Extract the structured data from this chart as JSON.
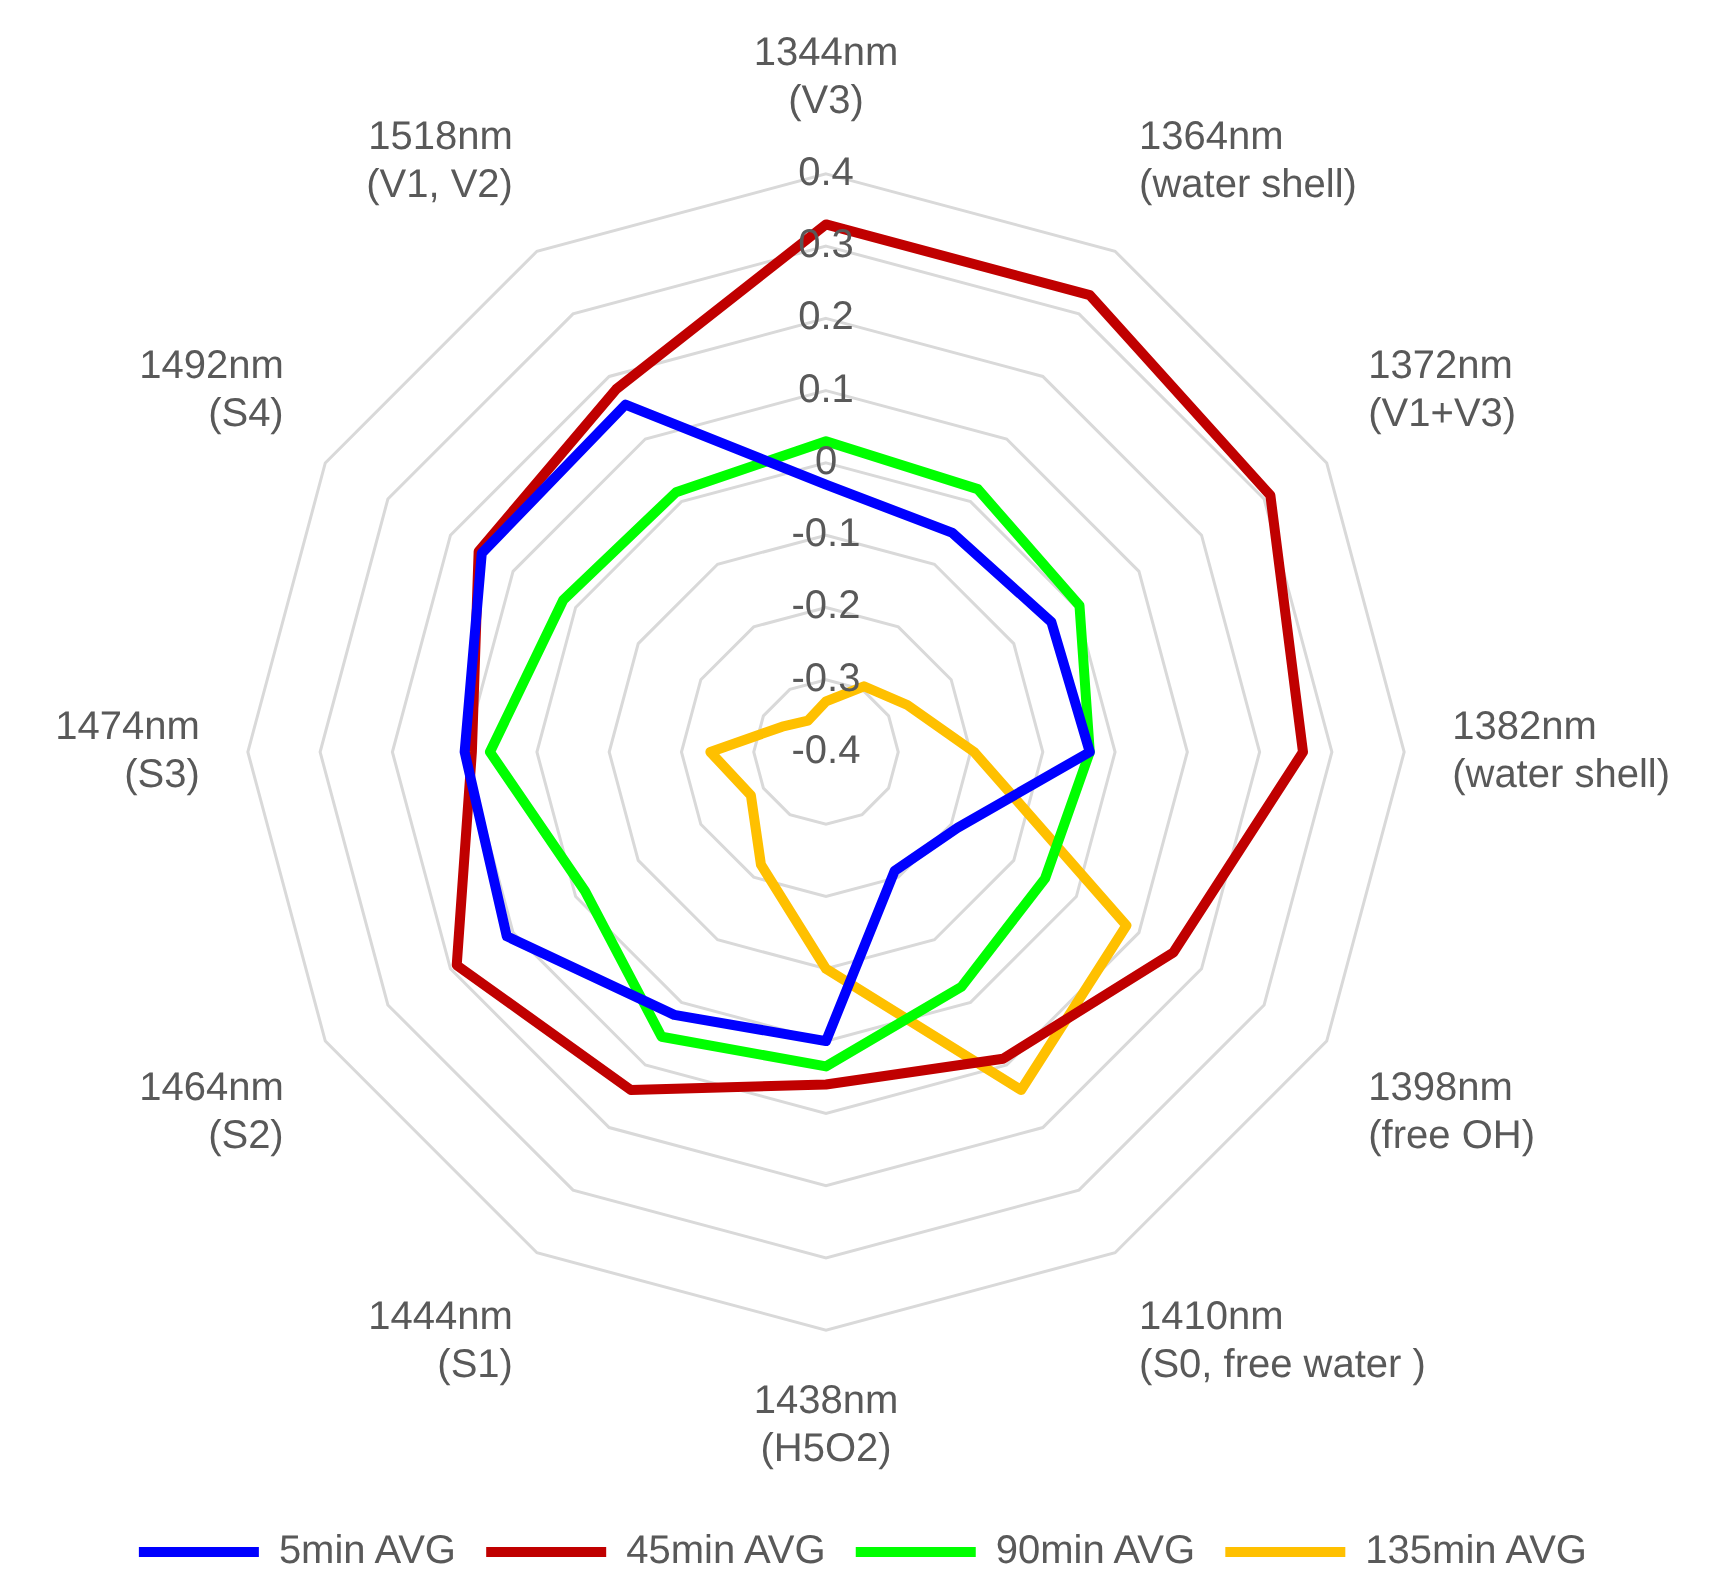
{
  "chart_data": {
    "type": "radar",
    "categories": [
      "1344nm (V3)",
      "1364nm (water shell)",
      "1372nm (V1+V3)",
      "1382nm (water shell)",
      "1398nm (free OH)",
      "1410nm (S0, free water )",
      "1438nm (H5O2)",
      "1444nm (S1)",
      "1464nm (S2)",
      "1474nm (S3)",
      "1492nm (S4)",
      "1518nm (V1, V2)"
    ],
    "series": [
      {
        "name": "5min AVG",
        "color": "#0000ff",
        "values": [
          -0.03,
          -0.05,
          -0.04,
          -0.035,
          -0.19,
          -0.21,
          0,
          0.02,
          0.11,
          0.1,
          0.15,
          0.155
        ]
      },
      {
        "name": "45min AVG",
        "color": "#c00000",
        "values": [
          0.33,
          0.33,
          0.31,
          0.26,
          0.155,
          0.09,
          0.06,
          0.14,
          0.19,
          0.09,
          0.155,
          0.18
        ]
      },
      {
        "name": "90min AVG",
        "color": "#00ff00",
        "values": [
          0.03,
          0.02,
          0.005,
          -0.035,
          -0.05,
          -0.025,
          0.035,
          0.055,
          -0.015,
          0.065,
          0.02,
          0.015
        ]
      },
      {
        "name": "135min AVG",
        "color": "#ffc000",
        "values": [
          -0.33,
          -0.295,
          -0.27,
          -0.195,
          0.08,
          0.14,
          -0.1,
          -0.22,
          -0.28,
          -0.24,
          -0.33,
          -0.35
        ]
      }
    ],
    "ylim": [
      -0.4,
      0.4
    ],
    "yticks": [
      -0.4,
      -0.3,
      -0.2,
      -0.1,
      0,
      0.1,
      0.2,
      0.3,
      0.4
    ],
    "grid": true,
    "legend": "bottom",
    "marker": "none"
  }
}
